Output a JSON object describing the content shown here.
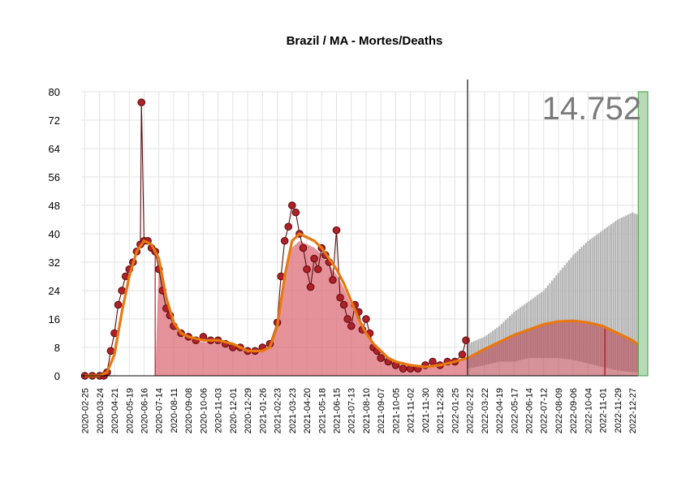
{
  "chart_data": {
    "type": "line",
    "title": "Brazil / MA - Mortes/Deaths",
    "xlabel": "",
    "ylabel": "",
    "total_label": "14.752",
    "ylim": [
      0,
      80
    ],
    "yticks": [
      0,
      8,
      16,
      24,
      32,
      40,
      48,
      56,
      64,
      72,
      80
    ],
    "xlim": [
      "2020-02-18",
      "2023-01-25"
    ],
    "xticks": [
      "2020-02-25",
      "2020-03-24",
      "2020-04-21",
      "2020-05-19",
      "2020-06-16",
      "2020-07-14",
      "2020-08-11",
      "2020-09-08",
      "2020-10-06",
      "2020-11-03",
      "2020-12-01",
      "2020-12-29",
      "2021-01-26",
      "2021-02-23",
      "2021-03-23",
      "2021-04-20",
      "2021-05-18",
      "2021-06-15",
      "2021-07-13",
      "2021-08-10",
      "2021-09-07",
      "2021-10-05",
      "2021-11-02",
      "2021-11-30",
      "2021-12-28",
      "2022-01-25",
      "2022-02-22",
      "2022-03-22",
      "2022-04-19",
      "2022-05-17",
      "2022-06-14",
      "2022-07-12",
      "2022-08-09",
      "2022-09-06",
      "2022-10-04",
      "2022-11-01",
      "2022-11-29",
      "2022-12-27"
    ],
    "last_observed": "2022-02-18",
    "forecast_end": "2023-01-13",
    "grid": true,
    "series": [
      {
        "type": "scatter",
        "x": [
          "2020-02-25",
          "2020-03-10",
          "2020-03-24",
          "2020-04-01",
          "2020-04-07",
          "2020-04-14",
          "2020-04-21",
          "2020-04-28",
          "2020-05-05",
          "2020-05-12",
          "2020-05-19",
          "2020-05-26",
          "2020-06-02",
          "2020-06-09",
          "2020-06-11",
          "2020-06-16",
          "2020-06-23",
          "2020-06-30",
          "2020-07-07",
          "2020-07-14",
          "2020-07-21",
          "2020-07-28",
          "2020-08-04",
          "2020-08-11",
          "2020-08-25",
          "2020-09-08",
          "2020-09-22",
          "2020-10-06",
          "2020-10-20",
          "2020-11-03",
          "2020-11-17",
          "2020-12-01",
          "2020-12-15",
          "2020-12-29",
          "2021-01-12",
          "2021-01-26",
          "2021-02-09",
          "2021-02-23",
          "2021-03-02",
          "2021-03-09",
          "2021-03-16",
          "2021-03-23",
          "2021-03-30",
          "2021-04-06",
          "2021-04-13",
          "2021-04-20",
          "2021-04-27",
          "2021-05-04",
          "2021-05-11",
          "2021-05-18",
          "2021-05-25",
          "2021-06-01",
          "2021-06-08",
          "2021-06-15",
          "2021-06-22",
          "2021-06-29",
          "2021-07-06",
          "2021-07-13",
          "2021-07-20",
          "2021-07-27",
          "2021-08-03",
          "2021-08-10",
          "2021-08-17",
          "2021-08-24",
          "2021-08-31",
          "2021-09-07",
          "2021-09-21",
          "2021-10-05",
          "2021-10-19",
          "2021-11-02",
          "2021-11-16",
          "2021-11-30",
          "2021-12-14",
          "2021-12-28",
          "2022-01-11",
          "2022-01-25",
          "2022-02-08",
          "2022-02-15"
        ],
        "values": [
          0,
          0,
          0,
          0,
          1,
          7,
          12,
          20,
          24,
          28,
          30,
          32,
          35,
          37,
          77,
          38,
          38,
          36,
          35,
          30,
          24,
          19,
          17,
          14,
          12,
          11,
          10,
          11,
          10,
          10,
          9,
          8,
          8,
          7,
          7,
          8,
          9,
          15,
          28,
          38,
          42,
          48,
          46,
          40,
          36,
          30,
          25,
          33,
          30,
          36,
          34,
          32,
          27,
          41,
          22,
          20,
          16,
          14,
          20,
          18,
          13,
          16,
          12,
          8,
          7,
          5,
          4,
          3,
          2,
          2,
          2,
          3,
          4,
          3,
          4,
          4,
          6,
          10
        ]
      },
      {
        "type": "line",
        "name": "trend",
        "x": [
          "2020-02-25",
          "2020-03-24",
          "2020-04-07",
          "2020-04-21",
          "2020-05-05",
          "2020-05-19",
          "2020-06-02",
          "2020-06-16",
          "2020-06-30",
          "2020-07-14",
          "2020-07-28",
          "2020-08-11",
          "2020-08-25",
          "2020-09-08",
          "2020-10-06",
          "2020-11-03",
          "2020-12-01",
          "2020-12-29",
          "2021-01-26",
          "2021-02-09",
          "2021-02-23",
          "2021-03-09",
          "2021-03-23",
          "2021-04-06",
          "2021-04-20",
          "2021-05-04",
          "2021-05-18",
          "2021-06-01",
          "2021-06-15",
          "2021-06-29",
          "2021-07-13",
          "2021-07-27",
          "2021-08-10",
          "2021-08-24",
          "2021-09-07",
          "2021-09-21",
          "2021-10-05",
          "2021-11-02",
          "2021-11-30",
          "2021-12-28",
          "2022-01-25",
          "2022-02-18"
        ],
        "values": [
          0,
          0,
          1,
          6,
          18,
          28,
          35,
          38,
          37,
          33,
          22,
          15,
          12,
          11,
          10,
          10,
          9,
          7,
          7,
          8,
          14,
          28,
          38,
          40,
          39,
          38,
          36,
          33,
          30,
          26,
          21,
          16,
          12,
          9,
          7,
          5,
          4,
          3,
          2.5,
          3,
          4,
          5
        ]
      },
      {
        "type": "line",
        "name": "projection",
        "x": [
          "2022-02-18",
          "2022-03-22",
          "2022-04-19",
          "2022-05-17",
          "2022-06-14",
          "2022-07-12",
          "2022-08-09",
          "2022-09-06",
          "2022-10-04",
          "2022-11-01",
          "2022-11-29",
          "2022-12-27",
          "2023-01-13"
        ],
        "values": [
          5,
          7.5,
          9.5,
          11.5,
          13,
          14.5,
          15.3,
          15.5,
          15,
          14,
          12,
          10,
          8
        ]
      },
      {
        "type": "bar",
        "name": "upper-band",
        "x": [
          "2022-02-18",
          "2022-03-22",
          "2022-04-19",
          "2022-05-17",
          "2022-06-14",
          "2022-07-12",
          "2022-08-09",
          "2022-09-06",
          "2022-10-04",
          "2022-11-01",
          "2022-11-29",
          "2022-12-27",
          "2023-01-13"
        ],
        "values": [
          9,
          11,
          14,
          18,
          21,
          24,
          29,
          34,
          38,
          41,
          44,
          46,
          45
        ]
      },
      {
        "type": "bar",
        "name": "lower-band",
        "x": [
          "2022-02-18",
          "2022-03-22",
          "2022-04-19",
          "2022-05-17",
          "2022-06-14",
          "2022-07-12",
          "2022-08-09",
          "2022-09-06",
          "2022-10-04",
          "2022-11-01",
          "2022-11-29",
          "2022-12-27",
          "2023-01-13"
        ],
        "values": [
          2,
          3,
          4,
          4,
          5,
          5,
          5,
          4.5,
          3.5,
          2.5,
          1.5,
          1,
          1
        ]
      }
    ],
    "colors": {
      "points": "#b02028",
      "points_edge": "#5a0c0c",
      "trend": "#e8780f",
      "area": "#dc6e78",
      "area_line": "#b02028",
      "band": "#b4b4b4",
      "projection_fill": "#b94a55",
      "now_line": "#333333",
      "green_bar": "#b6dbb6",
      "green_edge": "#3aa33a",
      "total_text": "#7a7a7a"
    }
  }
}
